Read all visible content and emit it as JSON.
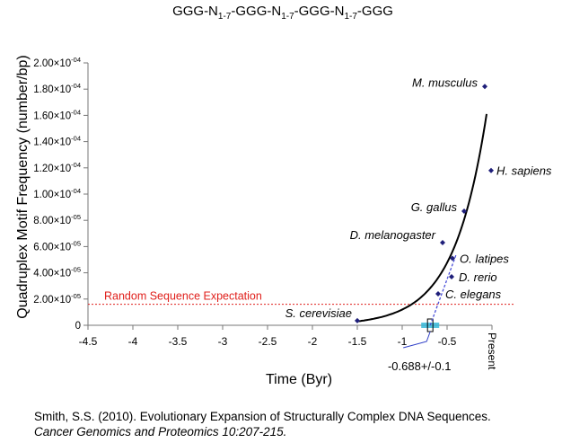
{
  "chart_data": {
    "type": "scatter",
    "title": "GGG-N1-7-GGG-N1-7-GGG-N1-7-GGG",
    "title_parts": [
      {
        "text": "GGG-N",
        "sub": false
      },
      {
        "text": "1-7",
        "sub": true
      },
      {
        "text": "-GGG-N",
        "sub": false
      },
      {
        "text": "1-7",
        "sub": true
      },
      {
        "text": "-GGG-N",
        "sub": false
      },
      {
        "text": "1-7",
        "sub": true
      },
      {
        "text": "-GGG",
        "sub": false
      }
    ],
    "xlabel": "Time (Byr)",
    "ylabel": "Quadruplex Motif Frequency (number/bp)",
    "xlim": [
      -4.5,
      0
    ],
    "ylim": [
      0,
      0.0002
    ],
    "x_ticks": [
      -4.5,
      -4,
      -3.5,
      -3,
      -2.5,
      -2,
      -1.5,
      -1,
      -0.5,
      0
    ],
    "x_tick_labels": [
      "-4.5",
      "-4",
      "-3.5",
      "-3",
      "-2.5",
      "-2",
      "-1.5",
      "-1",
      "-0.5",
      "0"
    ],
    "y_ticks": [
      0,
      2e-05,
      4e-05,
      6e-05,
      8e-05,
      0.0001,
      0.00012,
      0.00014,
      0.00016,
      0.00018,
      0.0002
    ],
    "y_tick_labels": [
      {
        "mantissa": "0",
        "exp": ""
      },
      {
        "mantissa": "2.00×10",
        "exp": "-05"
      },
      {
        "mantissa": "4.00×10",
        "exp": "-05"
      },
      {
        "mantissa": "6.00×10",
        "exp": "-05"
      },
      {
        "mantissa": "8.00×10",
        "exp": "-05"
      },
      {
        "mantissa": "1.00×10",
        "exp": "-04"
      },
      {
        "mantissa": "1.20×10",
        "exp": "-04"
      },
      {
        "mantissa": "1.40×10",
        "exp": "-04"
      },
      {
        "mantissa": "1.60×10",
        "exp": "-04"
      },
      {
        "mantissa": "1.80×10",
        "exp": "-04"
      },
      {
        "mantissa": "2.00×10",
        "exp": "-04"
      }
    ],
    "present_label": "Present",
    "points": [
      {
        "label": "S. cerevisiae",
        "x": -1.5,
        "y": 3.5e-06
      },
      {
        "label": "C. elegans",
        "x": -0.6,
        "y": 2.4e-05
      },
      {
        "label": "D. rerio",
        "x": -0.45,
        "y": 3.7e-05
      },
      {
        "label": "O. latipes",
        "x": -0.44,
        "y": 5.1e-05
      },
      {
        "label": "D. melanogaster",
        "x": -0.55,
        "y": 6.3e-05
      },
      {
        "label": "G. gallus",
        "x": -0.31,
        "y": 8.7e-05
      },
      {
        "label": "H. sapiens",
        "x": -0.01,
        "y": 0.000118
      },
      {
        "label": "M. musculus",
        "x": -0.08,
        "y": 0.000182
      }
    ],
    "fit_curve": {
      "type": "exponential",
      "x_start": -1.5,
      "x_end": -0.06,
      "y_start": 3e-06,
      "y_end": 0.000161
    },
    "random_expectation": {
      "label": "Random Sequence Expectation",
      "y": 1.6e-05,
      "color": "#e0201c"
    },
    "intercept": {
      "label": "-0.688+/-0.1",
      "x": -0.688,
      "error": 0.1,
      "band_color": "#38b8d8"
    },
    "point_color": "#1f1f7a",
    "regression_line_color": "#4a4fd8"
  },
  "citation": {
    "line1": "Smith, S.S. (2010). Evolutionary Expansion of Structurally Complex DNA Sequences.",
    "line2": "Cancer Genomics and Proteomics 10:207-215."
  }
}
